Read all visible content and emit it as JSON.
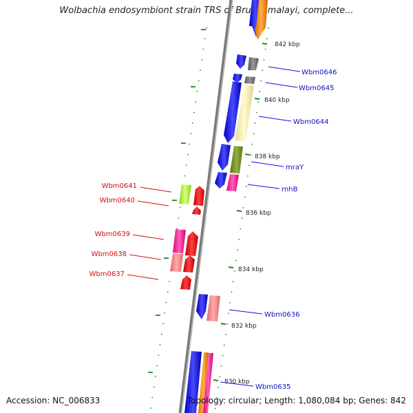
{
  "title": "Wolbachia endosymbiont strain TRS of Brugia malayi, complete...",
  "footer": {
    "accession": "Accession: NC_006833",
    "summary": "Topology: circular; Length: 1,080,084 bp; Genes: 842"
  },
  "kbp_labels": [
    "842 kbp",
    "840 kbp",
    "838 kbp",
    "836 kbp",
    "834 kbp",
    "832 kbp",
    "830 kbp"
  ],
  "genes_right_strand": [
    "Wbm0646",
    "Wbm0645",
    "Wbm0644",
    "mraY",
    "rnhB",
    "Wbm0636",
    "Wbm0635"
  ],
  "genes_left_strand": [
    "Wbm0641",
    "Wbm0640",
    "Wbm0639",
    "Wbm0638",
    "Wbm0637"
  ],
  "colors": {
    "backbone": "#808080",
    "blue": "#1010e0",
    "orange": "#ff8c00",
    "gray": "#7a7a7a",
    "khaki": "#eee8aa",
    "olive": "#6b8e23",
    "pink": "#ff1493",
    "salmon": "#f08080",
    "red": "#e01010",
    "lime": "#adff2f",
    "tick_green": "#1a8a1a"
  }
}
